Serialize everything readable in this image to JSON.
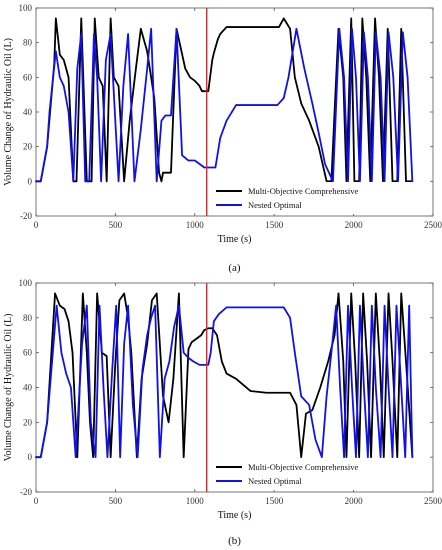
{
  "chart_data": [
    {
      "panel_label": "(a)",
      "type": "line",
      "xlabel": "Time (s)",
      "ylabel": "Volume Change of Hydraulic Oil (L)",
      "xlim": [
        0,
        2500
      ],
      "ylim": [
        -20,
        100
      ],
      "xticks": [
        0,
        500,
        1000,
        1500,
        2000,
        2500
      ],
      "yticks": [
        -20,
        0,
        20,
        40,
        60,
        80,
        100
      ],
      "grid": false,
      "legend_position": "bottom-right",
      "vertical_line": {
        "x": 1075,
        "color": "#e8231c"
      },
      "series": [
        {
          "name": "Multi-Objective Comprehensive",
          "color": "#000000",
          "x": [
            0,
            30,
            70,
            115,
            125,
            150,
            175,
            205,
            235,
            255,
            285,
            320,
            350,
            370,
            395,
            420,
            445,
            470,
            490,
            520,
            555,
            590,
            625,
            660,
            700,
            745,
            775,
            790,
            800,
            820,
            850,
            885,
            940,
            970,
            1000,
            1030,
            1045,
            1060,
            1085,
            1110,
            1120,
            1145,
            1160,
            1200,
            1260,
            1350,
            1450,
            1530,
            1560,
            1600,
            1630,
            1670,
            1720,
            1780,
            1830,
            1860,
            1880,
            1905,
            1935,
            1955,
            1985,
            2005,
            2035,
            2055,
            2080,
            2105,
            2135,
            2160,
            2185,
            2215,
            2245,
            2275,
            2300,
            2330,
            2370
          ],
          "y": [
            0,
            0,
            20,
            68,
            94,
            73,
            70,
            60,
            0,
            0,
            94,
            0,
            0,
            94,
            60,
            55,
            0,
            94,
            60,
            55,
            0,
            35,
            62,
            88,
            75,
            48,
            5,
            0,
            5,
            5,
            5,
            88,
            65,
            60,
            58,
            55,
            52,
            52,
            52,
            70,
            74,
            82,
            85,
            89,
            89,
            89,
            89,
            89,
            94,
            88,
            60,
            45,
            35,
            20,
            0,
            0,
            40,
            88,
            60,
            0,
            94,
            0,
            0,
            94,
            60,
            0,
            94,
            60,
            0,
            88,
            0,
            0,
            88,
            0,
            0
          ]
        },
        {
          "name": "Nested Optimal",
          "color": "#1010ee",
          "x": [
            0,
            30,
            70,
            85,
            125,
            150,
            175,
            205,
            235,
            260,
            285,
            310,
            335,
            365,
            385,
            410,
            440,
            470,
            520,
            550,
            580,
            620,
            660,
            700,
            725,
            760,
            790,
            815,
            850,
            885,
            920,
            960,
            1000,
            1030,
            1060,
            1100,
            1130,
            1160,
            1200,
            1260,
            1350,
            1450,
            1520,
            1560,
            1590,
            1640,
            1690,
            1740,
            1780,
            1820,
            1870,
            1910,
            1940,
            1965,
            1990,
            2015,
            2040,
            2065,
            2090,
            2115,
            2140,
            2170,
            2195,
            2220,
            2250,
            2280,
            2310,
            2340,
            2370
          ],
          "y": [
            0,
            0,
            20,
            40,
            75,
            60,
            55,
            40,
            0,
            65,
            85,
            0,
            0,
            85,
            60,
            0,
            70,
            85,
            0,
            55,
            85,
            0,
            30,
            65,
            88,
            0,
            35,
            38,
            38,
            88,
            15,
            12,
            12,
            10,
            8,
            8,
            8,
            25,
            35,
            44,
            44,
            44,
            44,
            48,
            60,
            88,
            65,
            45,
            28,
            10,
            0,
            88,
            60,
            0,
            88,
            60,
            0,
            86,
            60,
            0,
            86,
            60,
            0,
            86,
            60,
            0,
            86,
            60,
            0
          ]
        }
      ]
    },
    {
      "panel_label": "(b)",
      "type": "line",
      "xlabel": "Time (s)",
      "ylabel": "Volume Change of Hydraulic Oil (L)",
      "xlim": [
        0,
        2500
      ],
      "ylim": [
        -20,
        100
      ],
      "xticks": [
        0,
        500,
        1000,
        1500,
        2000,
        2500
      ],
      "yticks": [
        -20,
        0,
        20,
        40,
        60,
        80,
        100
      ],
      "grid": false,
      "legend_position": "bottom-right",
      "vertical_line": {
        "x": 1075,
        "color": "#e8231c"
      },
      "series": [
        {
          "name": "Multi-Objective Comprehensive",
          "color": "#000000",
          "x": [
            0,
            30,
            70,
            120,
            150,
            180,
            205,
            230,
            260,
            295,
            320,
            340,
            360,
            385,
            415,
            445,
            470,
            500,
            525,
            555,
            580,
            600,
            635,
            665,
            700,
            730,
            760,
            800,
            835,
            865,
            900,
            930,
            960,
            980,
            1010,
            1040,
            1060,
            1085,
            1110,
            1140,
            1170,
            1200,
            1260,
            1350,
            1450,
            1550,
            1600,
            1640,
            1670,
            1700,
            1740,
            1790,
            1840,
            1880,
            1905,
            1935,
            1955,
            1985,
            2010,
            2035,
            2060,
            2085,
            2110,
            2140,
            2165,
            2190,
            2220,
            2245,
            2275,
            2300,
            2330,
            2370
          ],
          "y": [
            0,
            0,
            20,
            94,
            87,
            85,
            78,
            60,
            0,
            94,
            60,
            20,
            0,
            94,
            60,
            58,
            0,
            55,
            90,
            94,
            80,
            60,
            0,
            45,
            65,
            90,
            94,
            35,
            20,
            45,
            94,
            0,
            62,
            66,
            68,
            70,
            73,
            74,
            74,
            70,
            55,
            48,
            45,
            38,
            37,
            37,
            37,
            30,
            0,
            25,
            27,
            40,
            55,
            70,
            94,
            55,
            0,
            94,
            55,
            0,
            94,
            55,
            0,
            94,
            55,
            0,
            94,
            55,
            0,
            94,
            55,
            0
          ]
        },
        {
          "name": "Nested Optimal",
          "color": "#1010ee",
          "x": [
            0,
            30,
            70,
            130,
            160,
            190,
            220,
            250,
            290,
            320,
            345,
            375,
            400,
            425,
            450,
            480,
            505,
            530,
            555,
            580,
            610,
            640,
            670,
            700,
            725,
            750,
            780,
            810,
            840,
            870,
            900,
            930,
            960,
            990,
            1030,
            1060,
            1085,
            1100,
            1120,
            1150,
            1200,
            1260,
            1350,
            1450,
            1560,
            1600,
            1630,
            1670,
            1720,
            1760,
            1800,
            1830,
            1860,
            1890,
            1915,
            1940,
            1965,
            1990,
            2015,
            2040,
            2065,
            2090,
            2115,
            2140,
            2170,
            2195,
            2220,
            2245,
            2270,
            2300,
            2325,
            2350,
            2370
          ],
          "y": [
            0,
            0,
            20,
            87,
            60,
            48,
            40,
            0,
            65,
            87,
            20,
            0,
            87,
            40,
            0,
            50,
            87,
            0,
            65,
            87,
            30,
            0,
            50,
            70,
            80,
            87,
            0,
            45,
            55,
            75,
            87,
            60,
            57,
            55,
            53,
            53,
            53,
            60,
            78,
            82,
            86,
            86,
            86,
            86,
            86,
            80,
            60,
            35,
            30,
            10,
            0,
            35,
            60,
            87,
            40,
            0,
            87,
            40,
            0,
            87,
            40,
            0,
            87,
            40,
            0,
            87,
            40,
            0,
            87,
            40,
            0,
            87,
            0
          ]
        }
      ]
    }
  ]
}
